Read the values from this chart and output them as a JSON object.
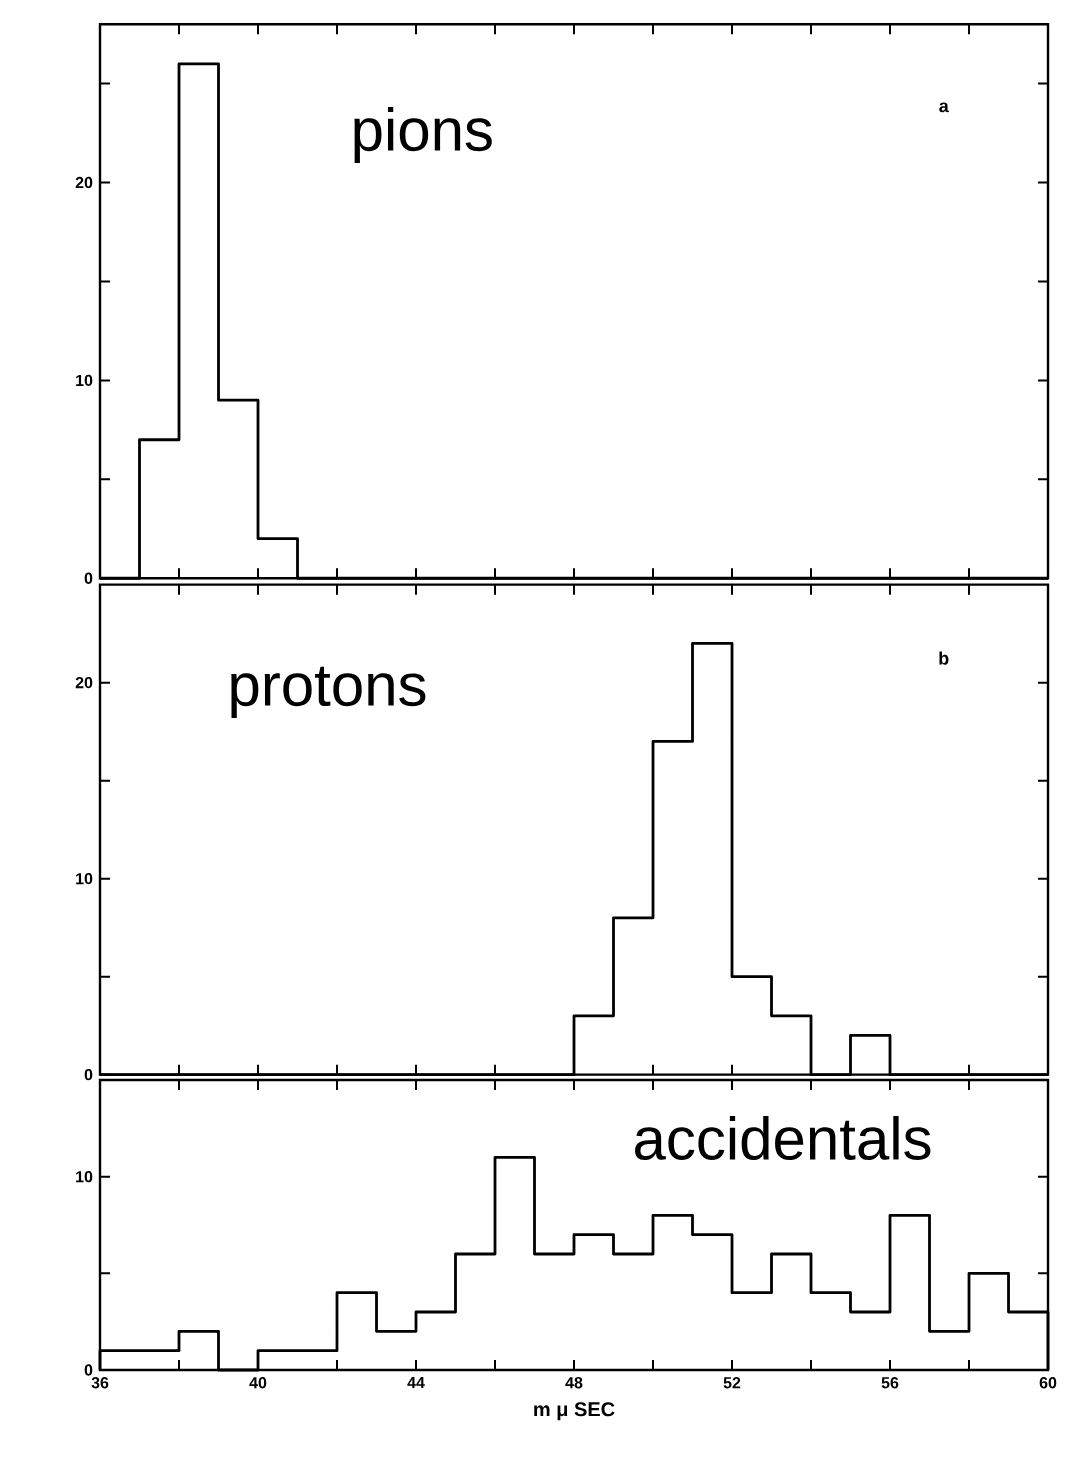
{
  "chart_data": [
    {
      "type": "histogram",
      "title": "pions",
      "annotations": [
        "a"
      ],
      "color": "#000000",
      "bins": [
        36,
        37,
        38,
        39,
        40,
        41,
        42,
        43,
        44,
        45,
        46,
        47,
        48,
        49,
        50,
        51,
        52,
        53,
        54,
        55,
        56,
        57,
        58,
        59,
        60
      ],
      "values": [
        0,
        7,
        26,
        9,
        2,
        0,
        0,
        0,
        0,
        0,
        0,
        0,
        0,
        0,
        0,
        0,
        0,
        0,
        0,
        0,
        0,
        0,
        0,
        0
      ],
      "xlim": [
        36,
        60
      ],
      "xticks": [
        36,
        {
          "value": 38,
          "label": null
        },
        40,
        {
          "value": 42,
          "label": null
        },
        44,
        {
          "value": 46,
          "label": null
        },
        48,
        {
          "value": 50,
          "label": null
        },
        52,
        {
          "value": 54,
          "label": null
        },
        56,
        {
          "value": 58,
          "label": null
        },
        60
      ],
      "ylim": [
        0,
        28
      ],
      "yticks": [
        0,
        {
          "value": 5,
          "label": null
        },
        10,
        {
          "value": 15,
          "label": null
        },
        20,
        {
          "value": 25,
          "label": null
        }
      ],
      "tick_labels": "y"
    },
    {
      "type": "histogram",
      "title": "protons",
      "annotations": [
        "b"
      ],
      "color": "#000000",
      "bins": [
        36,
        37,
        38,
        39,
        40,
        41,
        42,
        43,
        44,
        45,
        46,
        47,
        48,
        49,
        50,
        51,
        52,
        53,
        54,
        55,
        56,
        57,
        58,
        59,
        60
      ],
      "values": [
        0,
        0,
        0,
        0,
        0,
        0,
        0,
        0,
        0,
        0,
        0,
        0,
        3,
        8,
        17,
        22,
        5,
        3,
        0,
        2,
        0,
        0,
        0,
        0
      ],
      "xlim": [
        36,
        60
      ],
      "xticks": [
        36,
        {
          "value": 38,
          "label": null
        },
        40,
        {
          "value": 42,
          "label": null
        },
        44,
        {
          "value": 46,
          "label": null
        },
        48,
        {
          "value": 50,
          "label": null
        },
        52,
        {
          "value": 54,
          "label": null
        },
        56,
        {
          "value": 58,
          "label": null
        },
        60
      ],
      "ylim": [
        0,
        25
      ],
      "yticks": [
        0,
        {
          "value": 5,
          "label": null
        },
        10,
        {
          "value": 15,
          "label": null
        },
        20
      ],
      "tick_labels": "y"
    },
    {
      "type": "histogram",
      "title": "accidentals",
      "xlabel": "m μ SEC",
      "color": "#000000",
      "bins": [
        36,
        37,
        38,
        39,
        40,
        41,
        42,
        43,
        44,
        45,
        46,
        47,
        48,
        49,
        50,
        51,
        52,
        53,
        54,
        55,
        56,
        57,
        58,
        59,
        60
      ],
      "values": [
        1,
        1,
        2,
        0,
        1,
        1,
        4,
        2,
        3,
        6,
        11,
        6,
        7,
        6,
        8,
        7,
        4,
        6,
        4,
        3,
        8,
        2,
        5,
        3
      ],
      "xlim": [
        36,
        60
      ],
      "xticks": [
        36,
        {
          "value": 38,
          "label": null
        },
        40,
        {
          "value": 42,
          "label": null
        },
        44,
        {
          "value": 46,
          "label": null
        },
        48,
        {
          "value": 50,
          "label": null
        },
        52,
        {
          "value": 54,
          "label": null
        },
        56,
        {
          "value": 58,
          "label": null
        },
        60
      ],
      "ylim": [
        0,
        15
      ],
      "yticks": [
        0,
        {
          "value": 5,
          "label": null
        },
        10
      ]
    }
  ]
}
